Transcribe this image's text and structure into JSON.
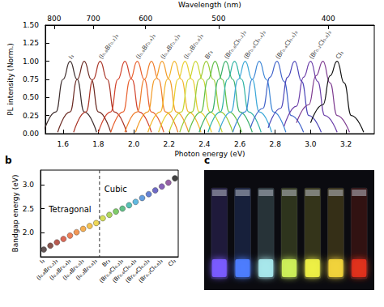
{
  "chart_data": [
    {
      "type": "line",
      "x_label": "Photon energy (eV)",
      "x2_label": "Wavelength (nm)",
      "y_label": "PL intensity (Norm.)",
      "xlim": [
        1.5,
        3.36
      ],
      "xticks": [
        1.6,
        1.8,
        {
          "value": 2,
          "label": "2.0"
        },
        2.2,
        2.4,
        2.6,
        2.8,
        {
          "value": 3,
          "label": "3.0"
        },
        3.2
      ],
      "x2ticks": [
        {
          "value": 1.55,
          "label": "800"
        },
        {
          "value": 1.771,
          "label": "700"
        },
        {
          "value": 2.067,
          "label": "600"
        },
        {
          "value": 2.48,
          "label": "500"
        },
        {
          "value": 3.1,
          "label": "400"
        }
      ],
      "ylim": [
        0,
        1.5
      ],
      "yticks": [
        {
          "value": 0,
          "label": "0.00"
        },
        0.25,
        {
          "value": 0.5,
          "label": "0.50"
        },
        0.75,
        {
          "value": 1,
          "label": "1.00"
        },
        1.25,
        {
          "value": 1.5,
          "label": "1.50"
        }
      ],
      "series": [
        {
          "color": "#3b2b2b",
          "x": [
            1.49,
            1.56,
            1.6,
            1.64,
            1.68,
            1.72,
            1.79
          ],
          "values": [
            0.02,
            0.3,
            0.75,
            1,
            0.75,
            0.3,
            0.02
          ]
        },
        {
          "color": "#6b2a22",
          "x": [
            1.57,
            1.64,
            1.68,
            1.72,
            1.76,
            1.8,
            1.87
          ],
          "values": [
            0.02,
            0.3,
            0.75,
            1,
            0.75,
            0.3,
            0.02
          ]
        },
        {
          "color": "#a83224",
          "x": [
            1.66,
            1.73,
            1.77,
            1.81,
            1.85,
            1.89,
            1.96
          ],
          "values": [
            0.02,
            0.3,
            0.75,
            1,
            0.75,
            0.3,
            0.02
          ]
        },
        {
          "color": "#d2432c",
          "x": [
            1.8,
            1.87,
            1.91,
            1.95,
            1.99,
            2.03,
            2.1
          ],
          "values": [
            0.02,
            0.3,
            0.75,
            1,
            0.75,
            0.3,
            0.02
          ]
        },
        {
          "color": "#e8602e",
          "x": [
            1.87,
            1.94,
            1.98,
            2.02,
            2.06,
            2.1,
            2.17
          ],
          "values": [
            0.02,
            0.3,
            0.75,
            1,
            0.75,
            0.3,
            0.02
          ]
        },
        {
          "color": "#ef7d2a",
          "x": [
            1.95,
            2.02,
            2.06,
            2.1,
            2.14,
            2.18,
            2.25
          ],
          "values": [
            0.02,
            0.3,
            0.75,
            1,
            0.75,
            0.3,
            0.02
          ]
        },
        {
          "color": "#f29a26",
          "x": [
            2.01,
            2.08,
            2.12,
            2.16,
            2.2,
            2.24,
            2.31
          ],
          "values": [
            0.02,
            0.3,
            0.75,
            1,
            0.75,
            0.3,
            0.02
          ]
        },
        {
          "color": "#f2b428",
          "x": [
            2.08,
            2.15,
            2.19,
            2.23,
            2.27,
            2.31,
            2.38
          ],
          "values": [
            0.02,
            0.3,
            0.75,
            1,
            0.75,
            0.3,
            0.02
          ]
        },
        {
          "color": "#e8cd2d",
          "x": [
            2.14,
            2.21,
            2.25,
            2.29,
            2.33,
            2.37,
            2.44
          ],
          "values": [
            0.02,
            0.3,
            0.75,
            1,
            0.75,
            0.3,
            0.02
          ]
        },
        {
          "color": "#c9d62f",
          "x": [
            2.2,
            2.27,
            2.31,
            2.35,
            2.39,
            2.43,
            2.5
          ],
          "values": [
            0.02,
            0.3,
            0.75,
            1,
            0.75,
            0.3,
            0.02
          ]
        },
        {
          "color": "#9acb35",
          "x": [
            2.26,
            2.33,
            2.37,
            2.41,
            2.45,
            2.49,
            2.56
          ],
          "values": [
            0.02,
            0.3,
            0.75,
            1,
            0.75,
            0.3,
            0.02
          ]
        },
        {
          "color": "#5fbf45",
          "x": [
            2.31,
            2.38,
            2.42,
            2.46,
            2.5,
            2.54,
            2.61
          ],
          "values": [
            0.02,
            0.3,
            0.75,
            1,
            0.75,
            0.3,
            0.02
          ]
        },
        {
          "color": "#39b06a",
          "x": [
            2.37,
            2.44,
            2.48,
            2.52,
            2.56,
            2.6,
            2.67
          ],
          "values": [
            0.02,
            0.3,
            0.75,
            1,
            0.75,
            0.3,
            0.02
          ]
        },
        {
          "color": "#2fb3a4",
          "x": [
            2.42,
            2.49,
            2.53,
            2.57,
            2.61,
            2.65,
            2.72
          ],
          "values": [
            0.02,
            0.3,
            0.75,
            1,
            0.75,
            0.3,
            0.02
          ]
        },
        {
          "color": "#3aa7d8",
          "x": [
            2.48,
            2.55,
            2.59,
            2.63,
            2.67,
            2.71,
            2.78
          ],
          "values": [
            0.02,
            0.3,
            0.75,
            1,
            0.75,
            0.3,
            0.02
          ]
        },
        {
          "color": "#3d86d6",
          "x": [
            2.56,
            2.63,
            2.67,
            2.71,
            2.75,
            2.79,
            2.86
          ],
          "values": [
            0.02,
            0.3,
            0.75,
            1,
            0.75,
            0.3,
            0.02
          ]
        },
        {
          "color": "#3f62c9",
          "x": [
            2.66,
            2.73,
            2.77,
            2.81,
            2.85,
            2.89,
            2.96
          ],
          "values": [
            0.08,
            0.35,
            0.78,
            1,
            0.72,
            0.25,
            0.02
          ]
        },
        {
          "color": "#4b45b8",
          "x": [
            2.76,
            2.83,
            2.87,
            2.91,
            2.95,
            2.99,
            3.06
          ],
          "values": [
            0.08,
            0.35,
            0.78,
            1,
            0.72,
            0.25,
            0.02
          ]
        },
        {
          "color": "#6a3da8",
          "x": [
            2.85,
            2.92,
            2.96,
            3.0,
            3.04,
            3.08,
            3.15
          ],
          "values": [
            0.1,
            0.38,
            0.78,
            1,
            0.72,
            0.25,
            0.02
          ]
        },
        {
          "color": "#7d3a8f",
          "x": [
            2.92,
            2.99,
            3.03,
            3.07,
            3.11,
            3.15,
            3.22
          ],
          "values": [
            0.15,
            0.4,
            0.8,
            1,
            0.7,
            0.25,
            0.02
          ]
        },
        {
          "color": "#111111",
          "x": [
            3.0,
            3.07,
            3.11,
            3.15,
            3.19,
            3.23,
            3.3
          ],
          "values": [
            0.15,
            0.4,
            0.8,
            1,
            0.7,
            0.25,
            0.02
          ]
        }
      ],
      "annotations": [
        {
          "text": "I₃",
          "x": 1.64,
          "y": 1.04
        },
        {
          "text": "(I₀.₈Br₀.₂)₃",
          "x": 1.81,
          "y": 1.04
        },
        {
          "text": "(I₀.₆Br₀.₄)₃",
          "x": 2.02,
          "y": 1.04
        },
        {
          "text": "(I₀.₄Br₀.₆)₃",
          "x": 2.16,
          "y": 1.04
        },
        {
          "text": "(I₀.₂Br₀.₈)₃",
          "x": 2.29,
          "y": 1.04
        },
        {
          "text": "Br₃",
          "x": 2.41,
          "y": 1.04
        },
        {
          "text": "(Br₀.₈Cl₀.₂)₃",
          "x": 2.52,
          "y": 1.04
        },
        {
          "text": "(Br₀.₆Cl₀.₄)₃",
          "x": 2.63,
          "y": 1.04
        },
        {
          "text": "(Br₀.₄Cl₀.₆)₃",
          "x": 2.81,
          "y": 1.04
        },
        {
          "text": "(Br₀.₂Cl₀.₈)₃",
          "x": 3.0,
          "y": 1.04
        },
        {
          "text": "Cl₃",
          "x": 3.15,
          "y": 1.04
        }
      ]
    },
    {
      "type": "scatter",
      "title": "b",
      "y_label": "Bandgap energy (eV)",
      "categories": [
        "I₃",
        null,
        "(I₀.₈Br₀.₂)₃",
        null,
        "(I₀.₆Br₀.₄)₃",
        null,
        "(I₀.₄Br₀.₆)₃",
        null,
        "(I₀.₂Br₀.₈)₃",
        null,
        "Br₃",
        null,
        "(Br₀.₈Cl₀.₂)₃",
        null,
        "(Br₀.₆Cl₀.₄)₃",
        null,
        "(Br₀.₄Cl₀.₆)₃",
        null,
        "(Br₀.₂Cl₀.₈)₃",
        null,
        "Cl₃"
      ],
      "ylim": [
        1.5,
        3.3
      ],
      "yticks": [
        {
          "value": 2,
          "label": "2.0"
        },
        2.5,
        {
          "value": 3,
          "label": "3.0"
        }
      ],
      "colors": [
        "#3b2b2b",
        "#6b2a22",
        "#a83224",
        "#d2432c",
        "#e8602e",
        "#ef7d2a",
        "#f29a26",
        "#f2b428",
        "#e8cd2d",
        "#c9d62f",
        "#9acb35",
        "#5fbf45",
        "#39b06a",
        "#2fb3a4",
        "#3aa7d8",
        "#3d86d6",
        "#3f62c9",
        "#4b45b8",
        "#6a3da8",
        "#7d3a8f",
        "#111111"
      ],
      "series": [
        {
          "name": "Tetragonal",
          "values": [
            1.65,
            1.73,
            1.8,
            1.87,
            1.94,
            2.01,
            2.08,
            2.14,
            2.2,
            null,
            null,
            null,
            null,
            null,
            null,
            null,
            null,
            null,
            null,
            null,
            null
          ]
        },
        {
          "name": "Cubic",
          "values": [
            null,
            null,
            null,
            null,
            null,
            null,
            null,
            null,
            null,
            2.3,
            2.37,
            2.44,
            2.5,
            2.57,
            2.64,
            2.72,
            2.8,
            2.88,
            2.96,
            3.04,
            3.13
          ]
        }
      ]
    }
  ],
  "photo": {
    "title": "c"
  }
}
